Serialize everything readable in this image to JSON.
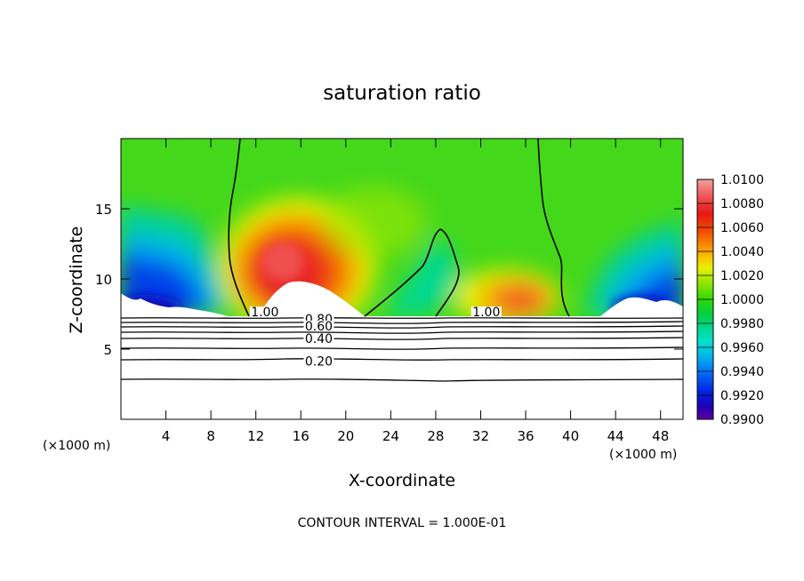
{
  "chart_data": {
    "type": "heatmap",
    "title": "saturation ratio",
    "xlabel": "X-coordinate",
    "ylabel": "Z-coordinate",
    "x_unit_left": "(×1000 m)",
    "x_unit_right": "(×1000 m)",
    "footer": "CONTOUR INTERVAL = 1.000E-01",
    "xlim": [
      0,
      50
    ],
    "ylim": [
      0,
      20
    ],
    "xticks": [
      4,
      8,
      12,
      16,
      20,
      24,
      28,
      32,
      36,
      40,
      44,
      48
    ],
    "yticks": [
      5,
      10,
      15
    ],
    "colorbar": {
      "min": 0.99,
      "max": 1.01,
      "labels": [
        "1.0100",
        "1.0080",
        "1.0060",
        "1.0040",
        "1.0020",
        "1.0000",
        "0.9980",
        "0.9960",
        "0.9940",
        "0.9920",
        "0.9900"
      ],
      "colors": [
        "#f4a0a0",
        "#f06060",
        "#e81818",
        "#f05000",
        "#f89000",
        "#f8c800",
        "#e8f000",
        "#a0e800",
        "#30d800",
        "#00d040",
        "#00d890",
        "#00e0d0",
        "#00a8f0",
        "#0060f0",
        "#0020e0",
        "#2000b0",
        "#6000a0"
      ]
    },
    "contour_labels": [
      {
        "text": "1.00",
        "x": 12.8,
        "z": 7.4
      },
      {
        "text": "0.80",
        "x": 17.6,
        "z": 6.9
      },
      {
        "text": "0.60",
        "x": 17.6,
        "z": 6.4
      },
      {
        "text": "0.40",
        "x": 17.6,
        "z": 5.5
      },
      {
        "text": "0.20",
        "x": 17.6,
        "z": 3.9
      },
      {
        "text": "1.00",
        "x": 32.5,
        "z": 7.4
      }
    ]
  }
}
